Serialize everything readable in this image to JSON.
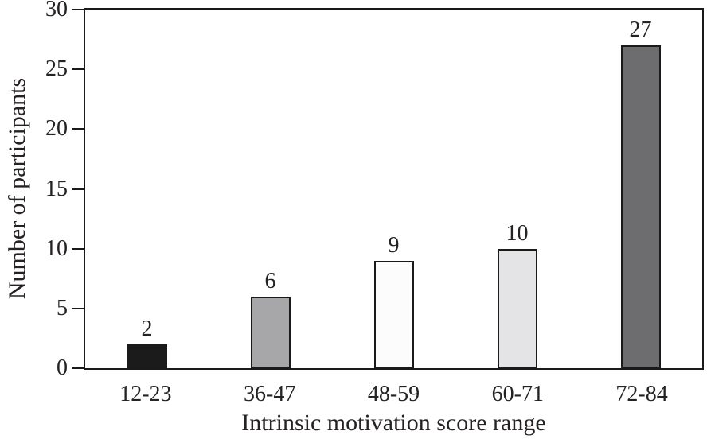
{
  "chart_data": {
    "type": "bar",
    "categories": [
      "12-23",
      "36-47",
      "48-59",
      "60-71",
      "72-84"
    ],
    "values": [
      2,
      6,
      9,
      10,
      27
    ],
    "value_labels": [
      "2",
      "6",
      "9",
      "10",
      "27"
    ],
    "title": "",
    "xlabel": "Intrinsic motivation score range",
    "ylabel": "Number of participants",
    "ylim": [
      0,
      30
    ],
    "yticks": [
      0,
      5,
      10,
      15,
      20,
      25,
      30
    ],
    "ytick_labels": [
      "0",
      "5",
      "10",
      "15",
      "20",
      "25",
      "30"
    ],
    "grid": false,
    "frame": true,
    "legend": null,
    "colors": {
      "bar_fills": [
        "#1b1b1b",
        "#a7a7aa",
        "#fcfcfc",
        "#e4e4e6",
        "#6d6d70"
      ],
      "bar_border": "#1a1a1a",
      "axis": "#1a1a1a",
      "text": "#262223",
      "background": "#ffffff"
    }
  }
}
